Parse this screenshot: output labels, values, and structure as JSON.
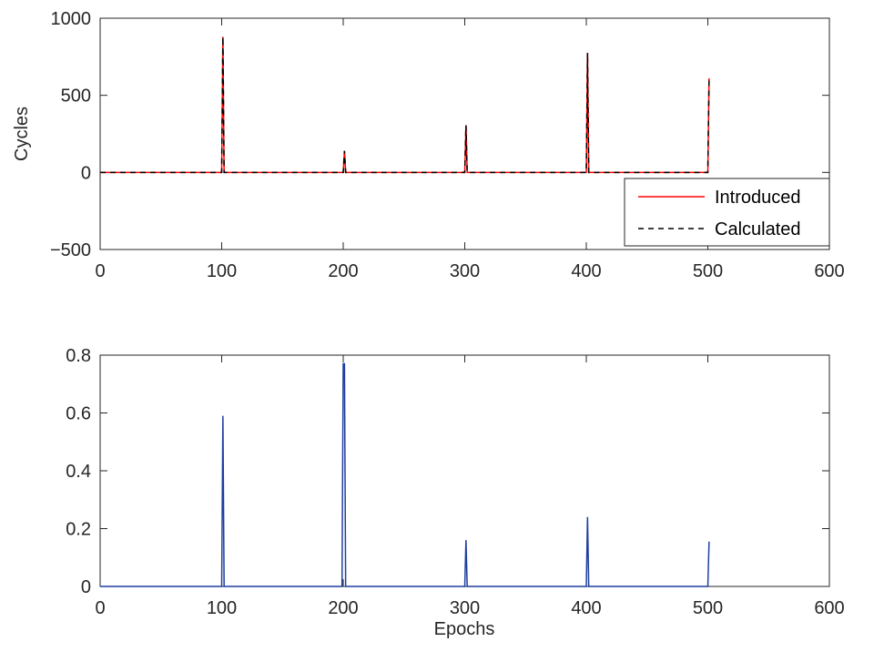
{
  "chart_data": [
    {
      "type": "line",
      "title": "",
      "xlabel": "",
      "ylabel": "Cycles",
      "xlim": [
        0,
        600
      ],
      "ylim": [
        -500,
        1000
      ],
      "xticks": [
        0,
        100,
        200,
        300,
        400,
        500,
        600
      ],
      "yticks": [
        -500,
        0,
        500,
        1000
      ],
      "ytick_labels": [
        "−500",
        "0",
        "500",
        "1000"
      ],
      "grid": false,
      "legend": "bottom-right",
      "series": [
        {
          "name": "Introduced",
          "color": "#ff0000",
          "style": "solid",
          "x": [
            0,
            100,
            101,
            102,
            200,
            201,
            202,
            300,
            301,
            302,
            400,
            401,
            402,
            500,
            501
          ],
          "y": [
            0,
            0,
            880,
            0,
            0,
            140,
            0,
            0,
            305,
            0,
            0,
            775,
            0,
            0,
            610
          ]
        },
        {
          "name": "Calculated",
          "color": "#000000",
          "style": "dashed",
          "x": [
            0,
            100,
            101,
            102,
            200,
            201,
            202,
            300,
            301,
            302,
            400,
            401,
            402,
            500,
            501
          ],
          "y": [
            0,
            0,
            880,
            0,
            0,
            140,
            0,
            0,
            305,
            0,
            0,
            775,
            0,
            0,
            610
          ]
        }
      ]
    },
    {
      "type": "line",
      "title": "",
      "xlabel": "Epochs",
      "ylabel": "",
      "xlim": [
        0,
        600
      ],
      "ylim": [
        0,
        0.8
      ],
      "xticks": [
        0,
        100,
        200,
        300,
        400,
        500,
        600
      ],
      "yticks": [
        0,
        0.2,
        0.4,
        0.6,
        0.8
      ],
      "ytick_labels": [
        "0",
        "0.2",
        "0.4",
        "0.6",
        "0.8"
      ],
      "grid": false,
      "series": [
        {
          "color": "#1f3f9f",
          "style": "solid",
          "x": [
            0,
            100,
            101,
            102,
            199,
            200,
            201,
            202,
            300,
            301,
            302,
            400,
            401,
            402,
            500,
            501
          ],
          "y": [
            0,
            0,
            0.59,
            0,
            0,
            0.77,
            0.77,
            0,
            0,
            0.16,
            0,
            0,
            0.24,
            0,
            0,
            0.155
          ]
        }
      ]
    }
  ]
}
